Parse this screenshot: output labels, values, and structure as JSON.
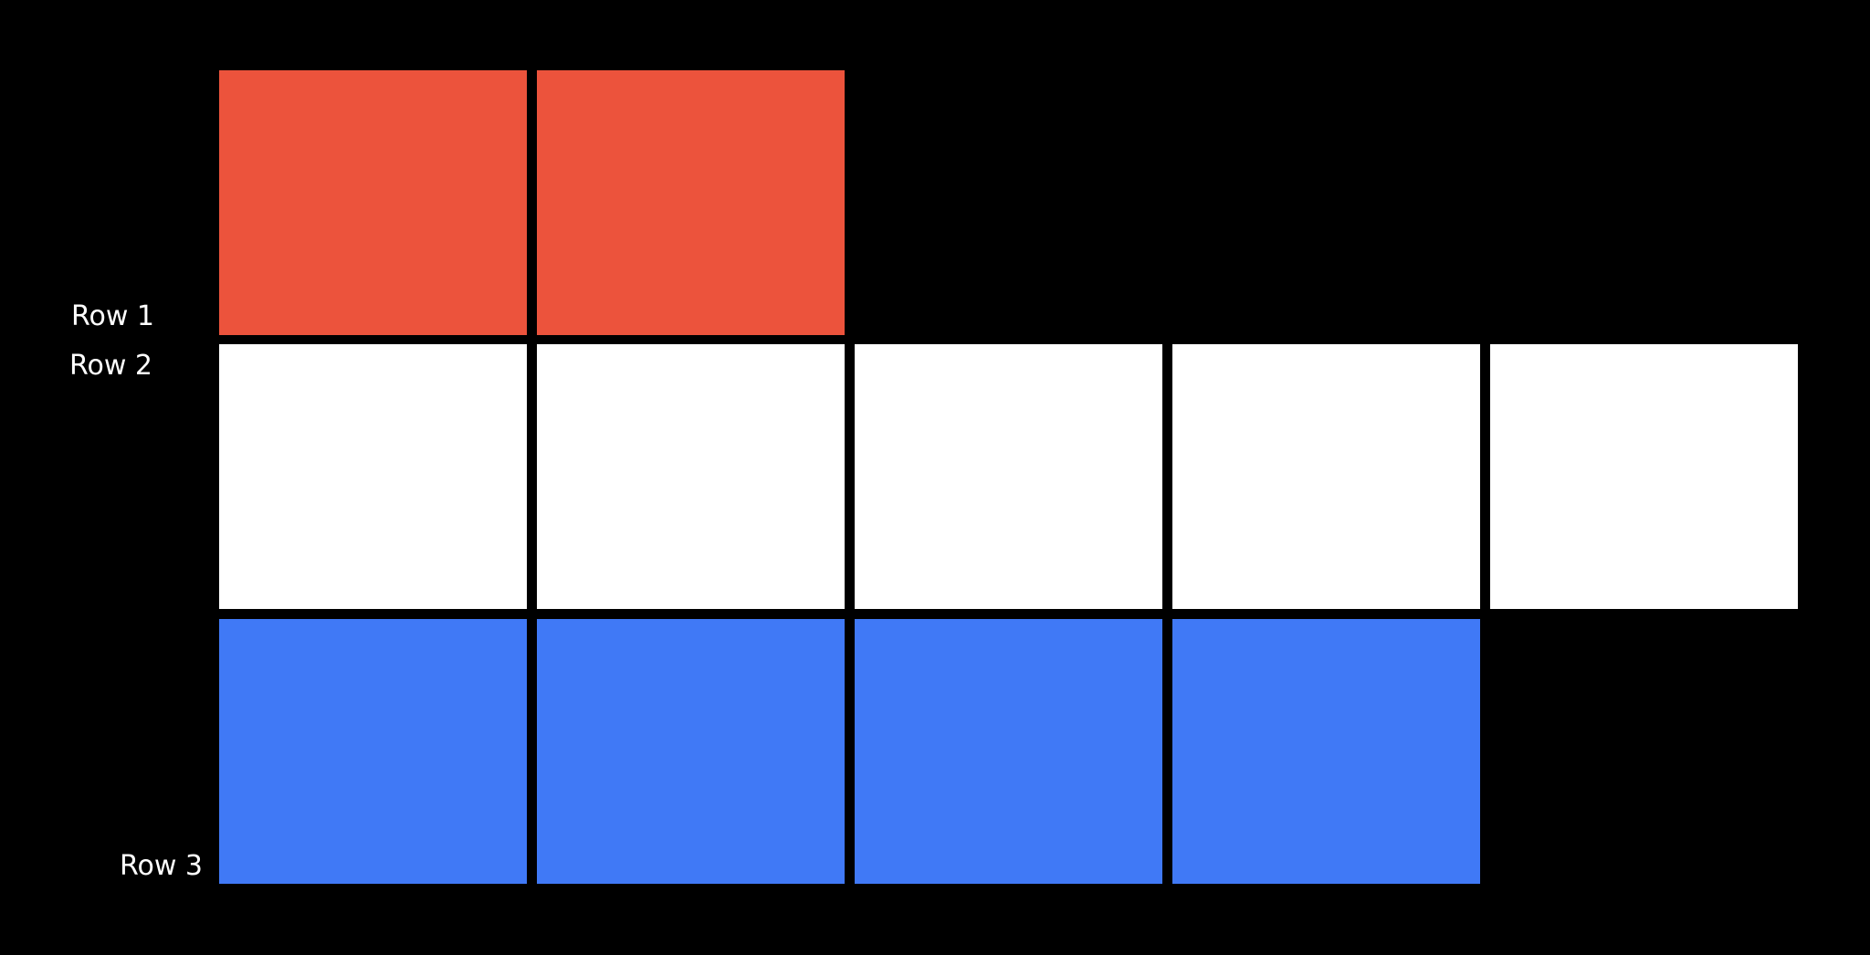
{
  "rows": [
    {
      "label": "Row 1",
      "count": 2,
      "color": "#EC533C"
    },
    {
      "label": "Row 2",
      "count": 5,
      "color": "#FFFFFF"
    },
    {
      "label": "Row 3",
      "count": 4,
      "color": "#4079F6"
    }
  ],
  "background": "#000000"
}
